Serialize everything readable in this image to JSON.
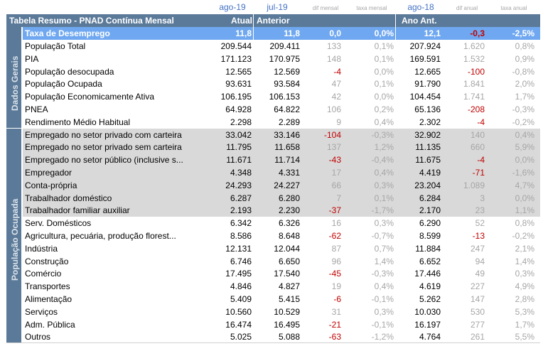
{
  "periods": {
    "atual": "ago-19",
    "anterior": "jul-19",
    "ano_anterior": "ago-18"
  },
  "small_headers": {
    "dif_mensal": "dif mensal",
    "taxa_mensal": "taxa mensal",
    "dif_anual": "dif anual",
    "taxa_anual": "taxa anual"
  },
  "title_bar": {
    "title": "Tabela Resumo - PNAD Contínua Mensal",
    "atual": "Atual",
    "anterior": "Anterior",
    "ano_anterior": "Ano Ant."
  },
  "highlight_row": {
    "label": "Taxa de Desemprego",
    "atual": "11,8",
    "anterior": "11,8",
    "dif_mensal": "0,0",
    "taxa_mensal": "0,0%",
    "ano_anterior": "12,1",
    "dif_anual": "-0,3",
    "taxa_anual": "-2,5%"
  },
  "groups": {
    "dados_gerais": "Dados Gerais",
    "populacao_ocupada": "População Ocupada"
  },
  "colors": {
    "title_bar": "#5b7a99",
    "highlight": "#6fa8f0",
    "period_header": "#4472c4",
    "negative": "#c00000",
    "muted": "#a6a6a6",
    "shaded_row": "#d9d9d9"
  },
  "rows": [
    {
      "label": "População Total",
      "atual": "209.544",
      "anterior": "209.411",
      "dif_mensal": "133",
      "taxa_mensal": "0,1%",
      "ano_anterior": "207.924",
      "dif_anual": "1.620",
      "taxa_anual": "0,8%"
    },
    {
      "label": "PIA",
      "atual": "171.123",
      "anterior": "170.975",
      "dif_mensal": "148",
      "taxa_mensal": "0,1%",
      "ano_anterior": "169.591",
      "dif_anual": "1.532",
      "taxa_anual": "0,9%"
    },
    {
      "label": "População desocupada",
      "atual": "12.565",
      "anterior": "12.569",
      "dif_mensal": "-4",
      "taxa_mensal": "0,0%",
      "ano_anterior": "12.665",
      "dif_anual": "-100",
      "taxa_anual": "-0,8%"
    },
    {
      "label": "População Ocupada",
      "atual": "93.631",
      "anterior": "93.584",
      "dif_mensal": "47",
      "taxa_mensal": "0,1%",
      "ano_anterior": "91.790",
      "dif_anual": "1.841",
      "taxa_anual": "2,0%"
    },
    {
      "label": "População Economicamente Ativa",
      "atual": "106.195",
      "anterior": "106.153",
      "dif_mensal": "42",
      "taxa_mensal": "0,0%",
      "ano_anterior": "104.454",
      "dif_anual": "1.741",
      "taxa_anual": "1,7%"
    },
    {
      "label": "PNEA",
      "atual": "64.928",
      "anterior": "64.822",
      "dif_mensal": "106",
      "taxa_mensal": "0,2%",
      "ano_anterior": "65.136",
      "dif_anual": "-208",
      "taxa_anual": "-0,3%"
    },
    {
      "label": "Rendimento Médio Habitual",
      "atual": "2.298",
      "anterior": "2.289",
      "dif_mensal": "9",
      "taxa_mensal": "0,4%",
      "ano_anterior": "2.302",
      "dif_anual": "-4",
      "taxa_anual": "-0,2%"
    },
    {
      "label": "Empregado no setor privado com carteira",
      "atual": "33.042",
      "anterior": "33.146",
      "dif_mensal": "-104",
      "taxa_mensal": "-0,3%",
      "ano_anterior": "32.902",
      "dif_anual": "140",
      "taxa_anual": "0,4%"
    },
    {
      "label": "Empregado no setor privado sem carteira",
      "atual": "11.795",
      "anterior": "11.658",
      "dif_mensal": "137",
      "taxa_mensal": "1,2%",
      "ano_anterior": "11.135",
      "dif_anual": "660",
      "taxa_anual": "5,9%"
    },
    {
      "label": "Empregado no setor público (inclusive s...",
      "atual": "11.671",
      "anterior": "11.714",
      "dif_mensal": "-43",
      "taxa_mensal": "-0,4%",
      "ano_anterior": "11.675",
      "dif_anual": "-4",
      "taxa_anual": "0,0%"
    },
    {
      "label": "Empregador",
      "atual": "4.348",
      "anterior": "4.331",
      "dif_mensal": "17",
      "taxa_mensal": "0,4%",
      "ano_anterior": "4.419",
      "dif_anual": "-71",
      "taxa_anual": "-1,6%"
    },
    {
      "label": "Conta-própria",
      "atual": "24.293",
      "anterior": "24.227",
      "dif_mensal": "66",
      "taxa_mensal": "0,3%",
      "ano_anterior": "23.204",
      "dif_anual": "1.089",
      "taxa_anual": "4,7%"
    },
    {
      "label": "Trabalhador doméstico",
      "atual": "6.287",
      "anterior": "6.280",
      "dif_mensal": "7",
      "taxa_mensal": "0,1%",
      "ano_anterior": "6.284",
      "dif_anual": "3",
      "taxa_anual": "0,0%"
    },
    {
      "label": "Trabalhador familiar auxiliar",
      "atual": "2.193",
      "anterior": "2.230",
      "dif_mensal": "-37",
      "taxa_mensal": "-1,7%",
      "ano_anterior": "2.170",
      "dif_anual": "23",
      "taxa_anual": "1,1%"
    },
    {
      "label": "Serv. Domésticos",
      "atual": "6.342",
      "anterior": "6.326",
      "dif_mensal": "16",
      "taxa_mensal": "0,3%",
      "ano_anterior": "6.290",
      "dif_anual": "52",
      "taxa_anual": "0,8%"
    },
    {
      "label": "Agricultura, pecuária, produção florest...",
      "atual": "8.586",
      "anterior": "8.648",
      "dif_mensal": "-62",
      "taxa_mensal": "-0,7%",
      "ano_anterior": "8.599",
      "dif_anual": "-13",
      "taxa_anual": "-0,2%"
    },
    {
      "label": "Indústria",
      "atual": "12.131",
      "anterior": "12.044",
      "dif_mensal": "87",
      "taxa_mensal": "0,7%",
      "ano_anterior": "11.884",
      "dif_anual": "247",
      "taxa_anual": "2,1%"
    },
    {
      "label": "Construção",
      "atual": "6.746",
      "anterior": "6.650",
      "dif_mensal": "96",
      "taxa_mensal": "1,4%",
      "ano_anterior": "6.652",
      "dif_anual": "94",
      "taxa_anual": "1,4%"
    },
    {
      "label": "Comércio",
      "atual": "17.495",
      "anterior": "17.540",
      "dif_mensal": "-45",
      "taxa_mensal": "-0,3%",
      "ano_anterior": "17.446",
      "dif_anual": "49",
      "taxa_anual": "0,3%"
    },
    {
      "label": "Transportes",
      "atual": "4.846",
      "anterior": "4.827",
      "dif_mensal": "19",
      "taxa_mensal": "0,4%",
      "ano_anterior": "4.619",
      "dif_anual": "227",
      "taxa_anual": "4,9%"
    },
    {
      "label": "Alimentação",
      "atual": "5.409",
      "anterior": "5.415",
      "dif_mensal": "-6",
      "taxa_mensal": "-0,1%",
      "ano_anterior": "5.262",
      "dif_anual": "147",
      "taxa_anual": "2,8%"
    },
    {
      "label": "Serviços",
      "atual": "10.560",
      "anterior": "10.529",
      "dif_mensal": "31",
      "taxa_mensal": "0,3%",
      "ano_anterior": "10.030",
      "dif_anual": "530",
      "taxa_anual": "5,3%"
    },
    {
      "label": "Adm. Pública",
      "atual": "16.474",
      "anterior": "16.495",
      "dif_mensal": "-21",
      "taxa_mensal": "-0,1%",
      "ano_anterior": "16.197",
      "dif_anual": "277",
      "taxa_anual": "1,7%"
    },
    {
      "label": "Outros",
      "atual": "5.025",
      "anterior": "5.088",
      "dif_mensal": "-63",
      "taxa_mensal": "-1,2%",
      "ano_anterior": "4.764",
      "dif_anual": "261",
      "taxa_anual": "5,5%"
    }
  ]
}
